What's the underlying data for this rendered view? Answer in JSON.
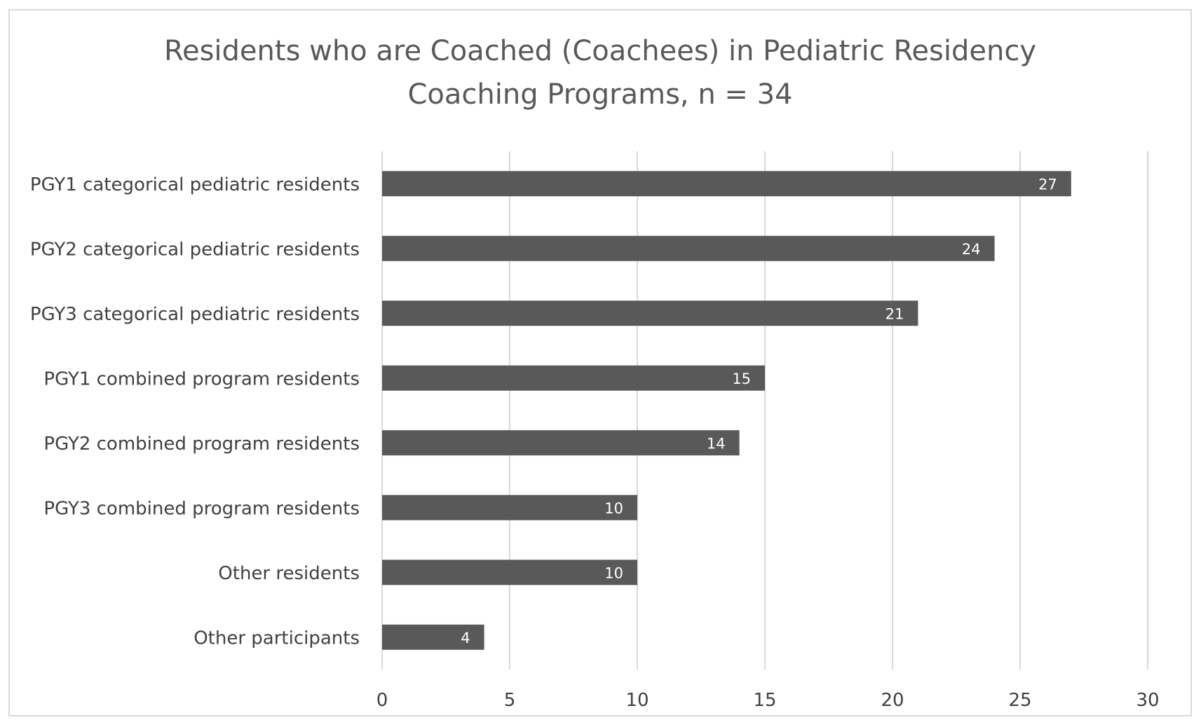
{
  "chart_data": {
    "type": "bar",
    "orientation": "horizontal",
    "title_lines": [
      "Residents who are Coached (Coachees) in Pediatric Residency",
      "Coaching Programs, n = 34"
    ],
    "categories": [
      "PGY1 categorical pediatric residents",
      "PGY2 categorical pediatric residents",
      "PGY3 categorical pediatric residents",
      "PGY1 combined program residents",
      "PGY2 combined program residents",
      "PGY3 combined program residents",
      "Other residents",
      "Other participants"
    ],
    "values": [
      27,
      24,
      21,
      15,
      14,
      10,
      10,
      4
    ],
    "xlim": [
      0,
      30
    ],
    "xticks": [
      0,
      5,
      10,
      15,
      20,
      25,
      30
    ],
    "grid": true,
    "legend": "none",
    "data_labels": true,
    "bar_color": "#595959",
    "grid_color": "#d9d9d9"
  }
}
